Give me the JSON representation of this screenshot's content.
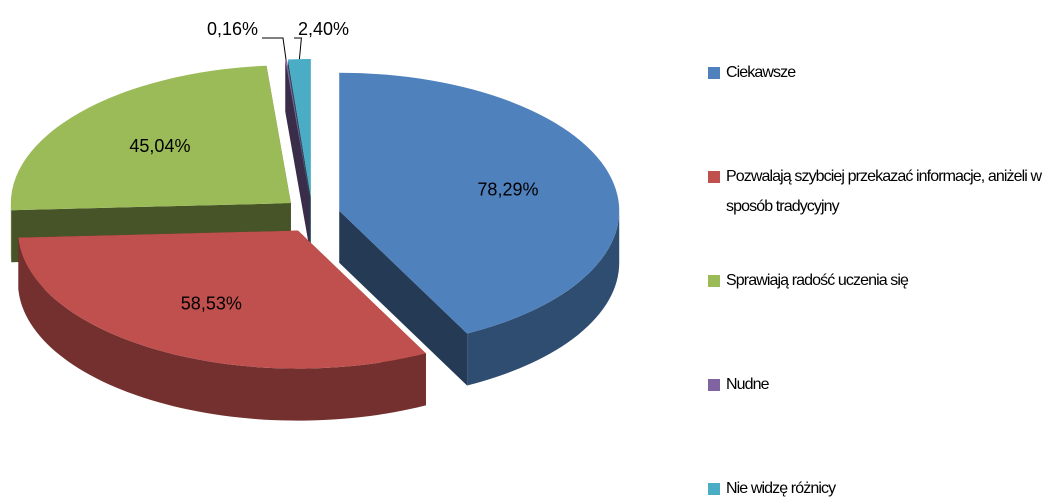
{
  "chart_data": {
    "type": "pie",
    "categories": [
      "Ciekawsze",
      "Pozwalają szybciej przekazać informacje, aniżeli w sposób tradycyjny",
      "Sprawiają radość uczenia się",
      "Nudne",
      "Nie widzę różnicy"
    ],
    "values": [
      78.29,
      58.53,
      45.04,
      0.16,
      2.4
    ],
    "value_labels": [
      "78,29%",
      "58,53%",
      "45,04%",
      "0,16%",
      "2,40%"
    ],
    "colors": [
      "#4f81bd",
      "#c0504d",
      "#9bbb59",
      "#8064a2",
      "#4bacc6"
    ],
    "legend": "right"
  }
}
